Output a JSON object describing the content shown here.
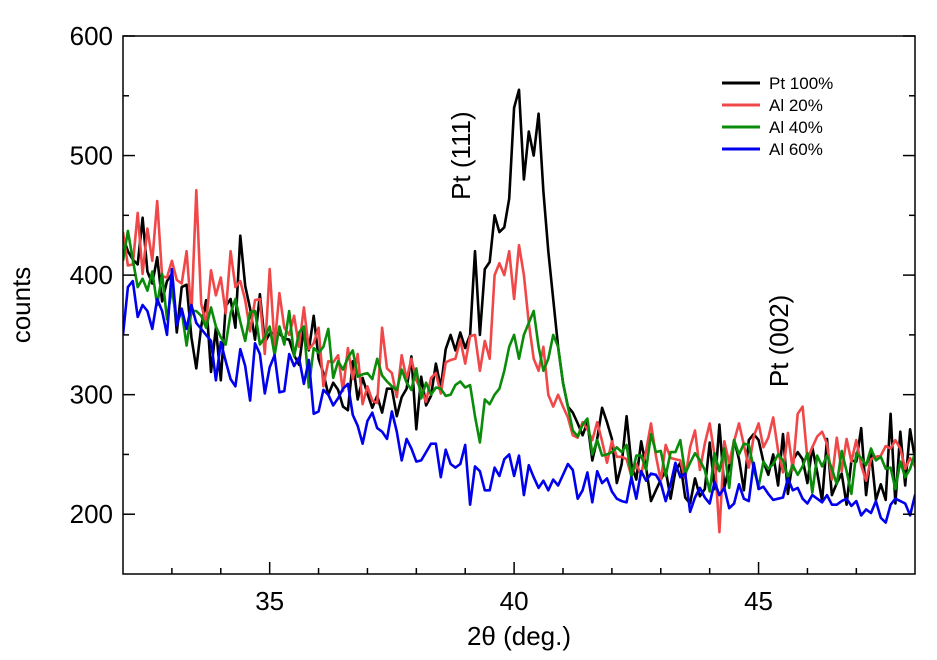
{
  "chart_data": {
    "type": "line",
    "title": "",
    "xlabel": "2θ (deg.)",
    "ylabel": "counts",
    "xlim": [
      32,
      48.2
    ],
    "ylim": [
      150,
      600
    ],
    "x_ticks_major": [
      35,
      40,
      45
    ],
    "x_ticks_minor": [
      33,
      34,
      36,
      37,
      38,
      39,
      41,
      42,
      43,
      44,
      46,
      47
    ],
    "y_ticks_major": [
      200,
      300,
      400,
      500,
      600
    ],
    "y_ticks_minor": [
      250,
      350,
      450,
      550
    ],
    "grid": false,
    "legend_position": "top-right",
    "annotations": [
      {
        "text": "Pt (111)",
        "x": 39.1,
        "y": 500,
        "rotation": "vertical"
      },
      {
        "text": "Pt (002)",
        "x": 45.6,
        "y": 345,
        "rotation": "vertical"
      }
    ],
    "series": [
      {
        "name": "Pt 100%",
        "color": "#000000",
        "x_start": 32.0,
        "x_step": 0.1,
        "values": [
          432,
          420,
          413,
          409,
          448,
          403,
          393,
          415,
          378,
          395,
          401,
          352,
          390,
          392,
          348,
          322,
          357,
          379,
          319,
          356,
          312,
          374,
          380,
          356,
          433,
          391,
          372,
          346,
          384,
          344,
          351,
          352,
          351,
          347,
          346,
          333,
          325,
          356,
          337,
          366,
          330,
          318,
          300,
          310,
          304,
          290,
          287,
          328,
          296,
          314,
          301,
          289,
          299,
          285,
          305,
          305,
          282,
          298,
          305,
          332,
          271,
          315,
          291,
          299,
          326,
          306,
          338,
          350,
          337,
          352,
          339,
          350,
          420,
          350,
          405,
          411,
          450,
          436,
          440,
          464,
          540,
          555,
          480,
          520,
          500,
          535,
          470,
          420,
          380,
          340,
          310,
          290,
          285,
          276,
          266,
          277,
          245,
          263,
          289,
          277,
          263,
          226,
          242,
          282,
          242,
          229,
          261,
          239,
          211,
          220,
          229,
          237,
          213,
          236,
          243,
          214,
          209,
          230,
          215,
          221,
          260,
          221,
          275,
          222,
          240,
          262,
          246,
          220,
          262,
          267,
          262,
          244,
          233,
          250,
          224,
          267,
          217,
          245,
          252,
          246,
          226,
          256,
          235,
          211,
          263,
          216,
          226,
          234,
          208,
          245,
          244,
          272,
          216,
          252,
          212,
          225,
          212,
          284,
          209,
          269,
          224,
          271,
          246,
          210,
          211,
          224,
          207,
          218,
          231,
          211,
          210,
          239,
          245
        ]
      },
      {
        "name": "Al 20%",
        "color": "#f04848",
        "x_start": 32.0,
        "x_step": 0.1,
        "values": [
          436,
          408,
          409,
          452,
          401,
          439,
          412,
          462,
          399,
          398,
          412,
          396,
          393,
          420,
          367,
          471,
          376,
          359,
          404,
          383,
          398,
          368,
          420,
          390,
          395,
          379,
          353,
          379,
          380,
          334,
          405,
          341,
          385,
          356,
          350,
          366,
          340,
          373,
          338,
          343,
          356,
          307,
          328,
          327,
          333,
          303,
          339,
          313,
          334,
          292,
          307,
          295,
          293,
          356,
          322,
          318,
          298,
          333,
          313,
          330,
          312,
          304,
          294,
          314,
          318,
          301,
          327,
          329,
          330,
          346,
          326,
          349,
          350,
          320,
          345,
          330,
          400,
          410,
          400,
          420,
          380,
          425,
          400,
          360,
          330,
          320,
          340,
          300,
          290,
          300,
          290,
          281,
          266,
          264,
          277,
          271,
          262,
          277,
          261,
          243,
          261,
          248,
          248,
          246,
          232,
          242,
          233,
          253,
          276,
          249,
          228,
          258,
          247,
          246,
          245,
          230,
          256,
          270,
          237,
          259,
          276,
          249,
          185,
          261,
          243,
          261,
          276,
          258,
          239,
          265,
          276,
          256,
          264,
          281,
          253,
          235,
          268,
          237,
          284,
          290,
          246,
          256,
          265,
          269,
          259,
          229,
          264,
          236,
          263,
          244,
          262,
          241,
          228,
          246,
          248,
          249,
          257,
          255,
          262,
          255,
          238,
          247,
          240,
          230,
          218,
          233,
          247,
          256,
          227,
          259,
          203,
          233,
          205
        ]
      },
      {
        "name": "Al 40%",
        "color": "#0a8c0a",
        "x_start": 32.0,
        "x_step": 0.1,
        "values": [
          412,
          437,
          413,
          390,
          397,
          387,
          403,
          375,
          401,
          363,
          389,
          360,
          370,
          341,
          370,
          370,
          366,
          356,
          373,
          357,
          348,
          342,
          368,
          380,
          361,
          345,
          369,
          370,
          342,
          348,
          357,
          333,
          357,
          342,
          370,
          332,
          352,
          357,
          306,
          339,
          335,
          340,
          355,
          314,
          328,
          321,
          331,
          337,
          315,
          317,
          318,
          313,
          330,
          316,
          311,
          307,
          304,
          321,
          310,
          304,
          322,
          297,
          310,
          300,
          306,
          305,
          299,
          300,
          308,
          311,
          306,
          308,
          282,
          260,
          296,
          292,
          300,
          305,
          320,
          340,
          350,
          330,
          350,
          360,
          370,
          340,
          320,
          330,
          350,
          340,
          310,
          290,
          270,
          265,
          275,
          280,
          250,
          262,
          249,
          250,
          252,
          256,
          252,
          258,
          231,
          249,
          249,
          237,
          267,
          252,
          253,
          232,
          252,
          252,
          262,
          234,
          243,
          251,
          245,
          237,
          219,
          251,
          236,
          255,
          222,
          262,
          250,
          259,
          258,
          238,
          223,
          244,
          238,
          242,
          250,
          245,
          231,
          241,
          233,
          240,
          251,
          218,
          249,
          240,
          249,
          238,
          225,
          253,
          236,
          217,
          251,
          247,
          241,
          255,
          245,
          248,
          238,
          239,
          221,
          244,
          231,
          238,
          251,
          238,
          219,
          229,
          230,
          222,
          220,
          234,
          221,
          196,
          241
        ]
      },
      {
        "name": "Al 60%",
        "color": "#0000ee",
        "x_start": 32.0,
        "x_step": 0.1,
        "values": [
          350,
          390,
          395,
          365,
          375,
          370,
          355,
          380,
          370,
          350,
          405,
          358,
          372,
          355,
          375,
          360,
          355,
          350,
          345,
          312,
          344,
          328,
          313,
          307,
          338,
          324,
          295,
          343,
          334,
          301,
          323,
          333,
          302,
          303,
          334,
          324,
          331,
          309,
          329,
          284,
          286,
          304,
          300,
          291,
          297,
          305,
          309,
          283,
          274,
          259,
          278,
          285,
          272,
          269,
          263,
          286,
          269,
          245,
          263,
          255,
          244,
          245,
          252,
          259,
          259,
          231,
          254,
          242,
          239,
          242,
          258,
          208,
          240,
          236,
          220,
          220,
          239,
          232,
          246,
          250,
          232,
          249,
          216,
          241,
          231,
          222,
          228,
          220,
          229,
          224,
          233,
          242,
          237,
          213,
          220,
          235,
          210,
          236,
          226,
          230,
          219,
          213,
          211,
          210,
          231,
          213,
          236,
          228,
          234,
          233,
          226,
          211,
          225,
          243,
          231,
          234,
          202,
          214,
          222,
          214,
          209,
          227,
          216,
          222,
          205,
          209,
          225,
          213,
          211,
          243,
          221,
          223,
          217,
          212,
          213,
          214,
          230,
          220,
          222,
          213,
          209,
          216,
          213,
          210,
          216,
          208,
          208,
          211,
          213,
          207,
          211,
          199,
          204,
          201,
          211,
          197,
          193,
          208,
          213,
          211,
          209,
          199,
          216,
          204,
          203,
          212,
          207,
          192,
          203,
          196,
          209,
          203,
          198
        ]
      }
    ]
  }
}
